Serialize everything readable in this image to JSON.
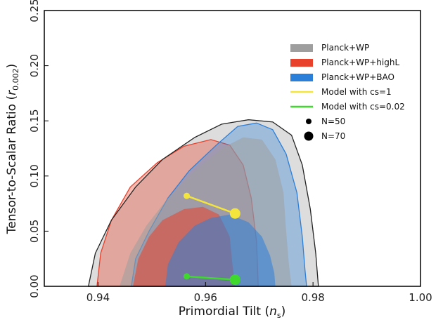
{
  "chart_data": {
    "type": "scatter",
    "xlabel": "Primordial Tilt (",
    "xlabel_sym": "n",
    "xlabel_sub": "s",
    "xlabel_close": ")",
    "ylabel": "Tensor-to-Scalar Ratio (",
    "ylabel_sym": "r",
    "ylabel_sub": "0.002",
    "ylabel_close": ")",
    "xlim": [
      0.93,
      1.0
    ],
    "ylim": [
      0.0,
      0.25
    ],
    "x_ticks": [
      "0.94",
      "0.96",
      "0.98",
      "1.00"
    ],
    "y_ticks": [
      "0.00",
      "0.05",
      "0.10",
      "0.15",
      "0.20",
      "0.25"
    ],
    "x_tick_values": [
      0.94,
      0.96,
      0.98,
      1.0
    ],
    "y_tick_values": [
      0.0,
      0.05,
      0.1,
      0.15,
      0.2,
      0.25
    ],
    "contours": [
      {
        "name": "Planck+WP",
        "color": "#9e9e9e",
        "outer": [
          [
            0.9382,
            0
          ],
          [
            0.9395,
            0.03
          ],
          [
            0.9425,
            0.06
          ],
          [
            0.947,
            0.09
          ],
          [
            0.952,
            0.115
          ],
          [
            0.958,
            0.135
          ],
          [
            0.963,
            0.147
          ],
          [
            0.968,
            0.151
          ],
          [
            0.9725,
            0.149
          ],
          [
            0.976,
            0.137
          ],
          [
            0.978,
            0.11
          ],
          [
            0.9795,
            0.07
          ],
          [
            0.9805,
            0.03
          ],
          [
            0.981,
            0
          ]
        ],
        "inner": [
          [
            0.944,
            0
          ],
          [
            0.946,
            0.03
          ],
          [
            0.949,
            0.055
          ],
          [
            0.953,
            0.08
          ],
          [
            0.958,
            0.105
          ],
          [
            0.963,
            0.125
          ],
          [
            0.967,
            0.135
          ],
          [
            0.9705,
            0.133
          ],
          [
            0.973,
            0.115
          ],
          [
            0.9745,
            0.085
          ],
          [
            0.975,
            0.05
          ],
          [
            0.9755,
            0.02
          ],
          [
            0.976,
            0
          ]
        ]
      },
      {
        "name": "Planck+WP+highL",
        "color": "#e8412c",
        "outer": [
          [
            0.9398,
            0
          ],
          [
            0.9405,
            0.03
          ],
          [
            0.9425,
            0.06
          ],
          [
            0.946,
            0.09
          ],
          [
            0.951,
            0.112
          ],
          [
            0.956,
            0.127
          ],
          [
            0.961,
            0.133
          ],
          [
            0.9645,
            0.128
          ],
          [
            0.967,
            0.11
          ],
          [
            0.9685,
            0.08
          ],
          [
            0.9695,
            0.04
          ],
          [
            0.9698,
            0
          ]
        ],
        "inner": [
          [
            0.9465,
            0
          ],
          [
            0.9475,
            0.025
          ],
          [
            0.9495,
            0.045
          ],
          [
            0.952,
            0.06
          ],
          [
            0.956,
            0.07
          ],
          [
            0.9595,
            0.072
          ],
          [
            0.9625,
            0.065
          ],
          [
            0.9645,
            0.045
          ],
          [
            0.965,
            0.02
          ],
          [
            0.9655,
            0
          ]
        ]
      },
      {
        "name": "Planck+WP+BAO",
        "color": "#2c7fd8",
        "outer": [
          [
            0.9462,
            0
          ],
          [
            0.947,
            0.025
          ],
          [
            0.9495,
            0.05
          ],
          [
            0.953,
            0.08
          ],
          [
            0.957,
            0.105
          ],
          [
            0.962,
            0.128
          ],
          [
            0.966,
            0.145
          ],
          [
            0.9695,
            0.148
          ],
          [
            0.9725,
            0.142
          ],
          [
            0.975,
            0.12
          ],
          [
            0.977,
            0.085
          ],
          [
            0.978,
            0.045
          ],
          [
            0.9785,
            0.015
          ],
          [
            0.9788,
            0
          ]
        ],
        "inner": [
          [
            0.9525,
            0
          ],
          [
            0.953,
            0.02
          ],
          [
            0.955,
            0.04
          ],
          [
            0.958,
            0.055
          ],
          [
            0.961,
            0.062
          ],
          [
            0.9645,
            0.065
          ],
          [
            0.968,
            0.058
          ],
          [
            0.9705,
            0.045
          ],
          [
            0.972,
            0.028
          ],
          [
            0.9728,
            0.012
          ],
          [
            0.973,
            0
          ]
        ]
      }
    ],
    "model_lines": [
      {
        "name": "Model with cs=1",
        "color": "#f3e53b",
        "x": [
          0.9565,
          0.9655
        ],
        "y": [
          0.082,
          0.066
        ]
      },
      {
        "name": "Model with cs=0.02",
        "color": "#3fd92d",
        "x": [
          0.9565,
          0.9655
        ],
        "y": [
          0.009,
          0.006
        ]
      }
    ],
    "legend": [
      {
        "label": "Planck+WP",
        "kind": "patch",
        "color": "#9e9e9e"
      },
      {
        "label": "Planck+WP+highL",
        "kind": "patch",
        "color": "#e8412c"
      },
      {
        "label": "Planck+WP+BAO",
        "kind": "patch",
        "color": "#2c7fd8"
      },
      {
        "label": "Model with cs=1",
        "kind": "line",
        "color": "#f3e53b"
      },
      {
        "label": "Model with cs=0.02",
        "kind": "line",
        "color": "#3fd92d"
      },
      {
        "label": "N=50",
        "kind": "small-dot",
        "color": "#000000"
      },
      {
        "label": "N=70",
        "kind": "big-dot",
        "color": "#000000"
      }
    ],
    "legend_position": "top-right",
    "grid": false
  }
}
